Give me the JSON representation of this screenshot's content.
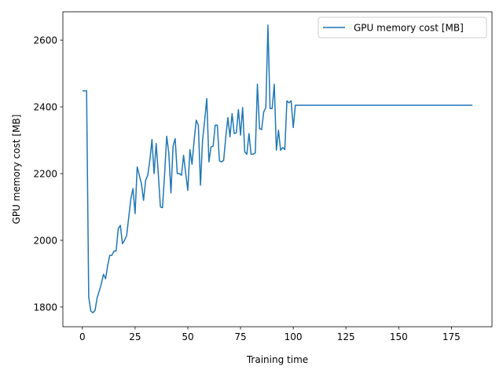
{
  "chart_data": {
    "type": "line",
    "xlabel": "Training time",
    "ylabel": "GPU memory cost [MB]",
    "xlim": [
      -9.25,
      194.25
    ],
    "ylim": [
      1741,
      2685
    ],
    "xticks": [
      0,
      25,
      50,
      75,
      100,
      125,
      150,
      175
    ],
    "yticks": [
      1800,
      2000,
      2200,
      2400,
      2600
    ],
    "grid": false,
    "legend_position": "top-right",
    "series": [
      {
        "name": "GPU memory cost [MB]",
        "color": "#1f77b4",
        "x": [
          0,
          1,
          2,
          3,
          4,
          5,
          6,
          7,
          8,
          9,
          10,
          11,
          12,
          13,
          14,
          15,
          16,
          17,
          18,
          19,
          20,
          21,
          22,
          23,
          24,
          25,
          26,
          27,
          28,
          29,
          30,
          31,
          32,
          33,
          34,
          35,
          36,
          37,
          38,
          39,
          40,
          41,
          42,
          43,
          44,
          45,
          46,
          47,
          48,
          49,
          50,
          51,
          52,
          53,
          54,
          55,
          56,
          57,
          58,
          59,
          60,
          61,
          62,
          63,
          64,
          65,
          66,
          67,
          68,
          69,
          70,
          71,
          72,
          73,
          74,
          75,
          76,
          77,
          78,
          79,
          80,
          81,
          82,
          83,
          84,
          85,
          86,
          87,
          88,
          89,
          90,
          91,
          92,
          93,
          94,
          95,
          96,
          97,
          98,
          99,
          100,
          101,
          185
        ],
        "y": [
          2448,
          2448,
          2448,
          1830,
          1788,
          1783,
          1790,
          1828,
          1848,
          1870,
          1898,
          1885,
          1925,
          1955,
          1955,
          1968,
          1968,
          2035,
          2045,
          1990,
          2000,
          2015,
          2070,
          2125,
          2155,
          2080,
          2220,
          2195,
          2170,
          2120,
          2180,
          2195,
          2240,
          2302,
          2200,
          2290,
          2200,
          2100,
          2098,
          2200,
          2312,
          2260,
          2142,
          2282,
          2305,
          2200,
          2200,
          2195,
          2255,
          2200,
          2150,
          2272,
          2228,
          2300,
          2360,
          2345,
          2165,
          2300,
          2360,
          2425,
          2235,
          2280,
          2282,
          2345,
          2345,
          2238,
          2235,
          2240,
          2310,
          2368,
          2310,
          2380,
          2320,
          2322,
          2392,
          2315,
          2398,
          2265,
          2258,
          2320,
          2258,
          2258,
          2262,
          2468,
          2335,
          2332,
          2385,
          2398,
          2645,
          2395,
          2395,
          2468,
          2270,
          2330,
          2270,
          2278,
          2272,
          2418,
          2412,
          2418,
          2338,
          2405,
          2405
        ]
      }
    ]
  }
}
